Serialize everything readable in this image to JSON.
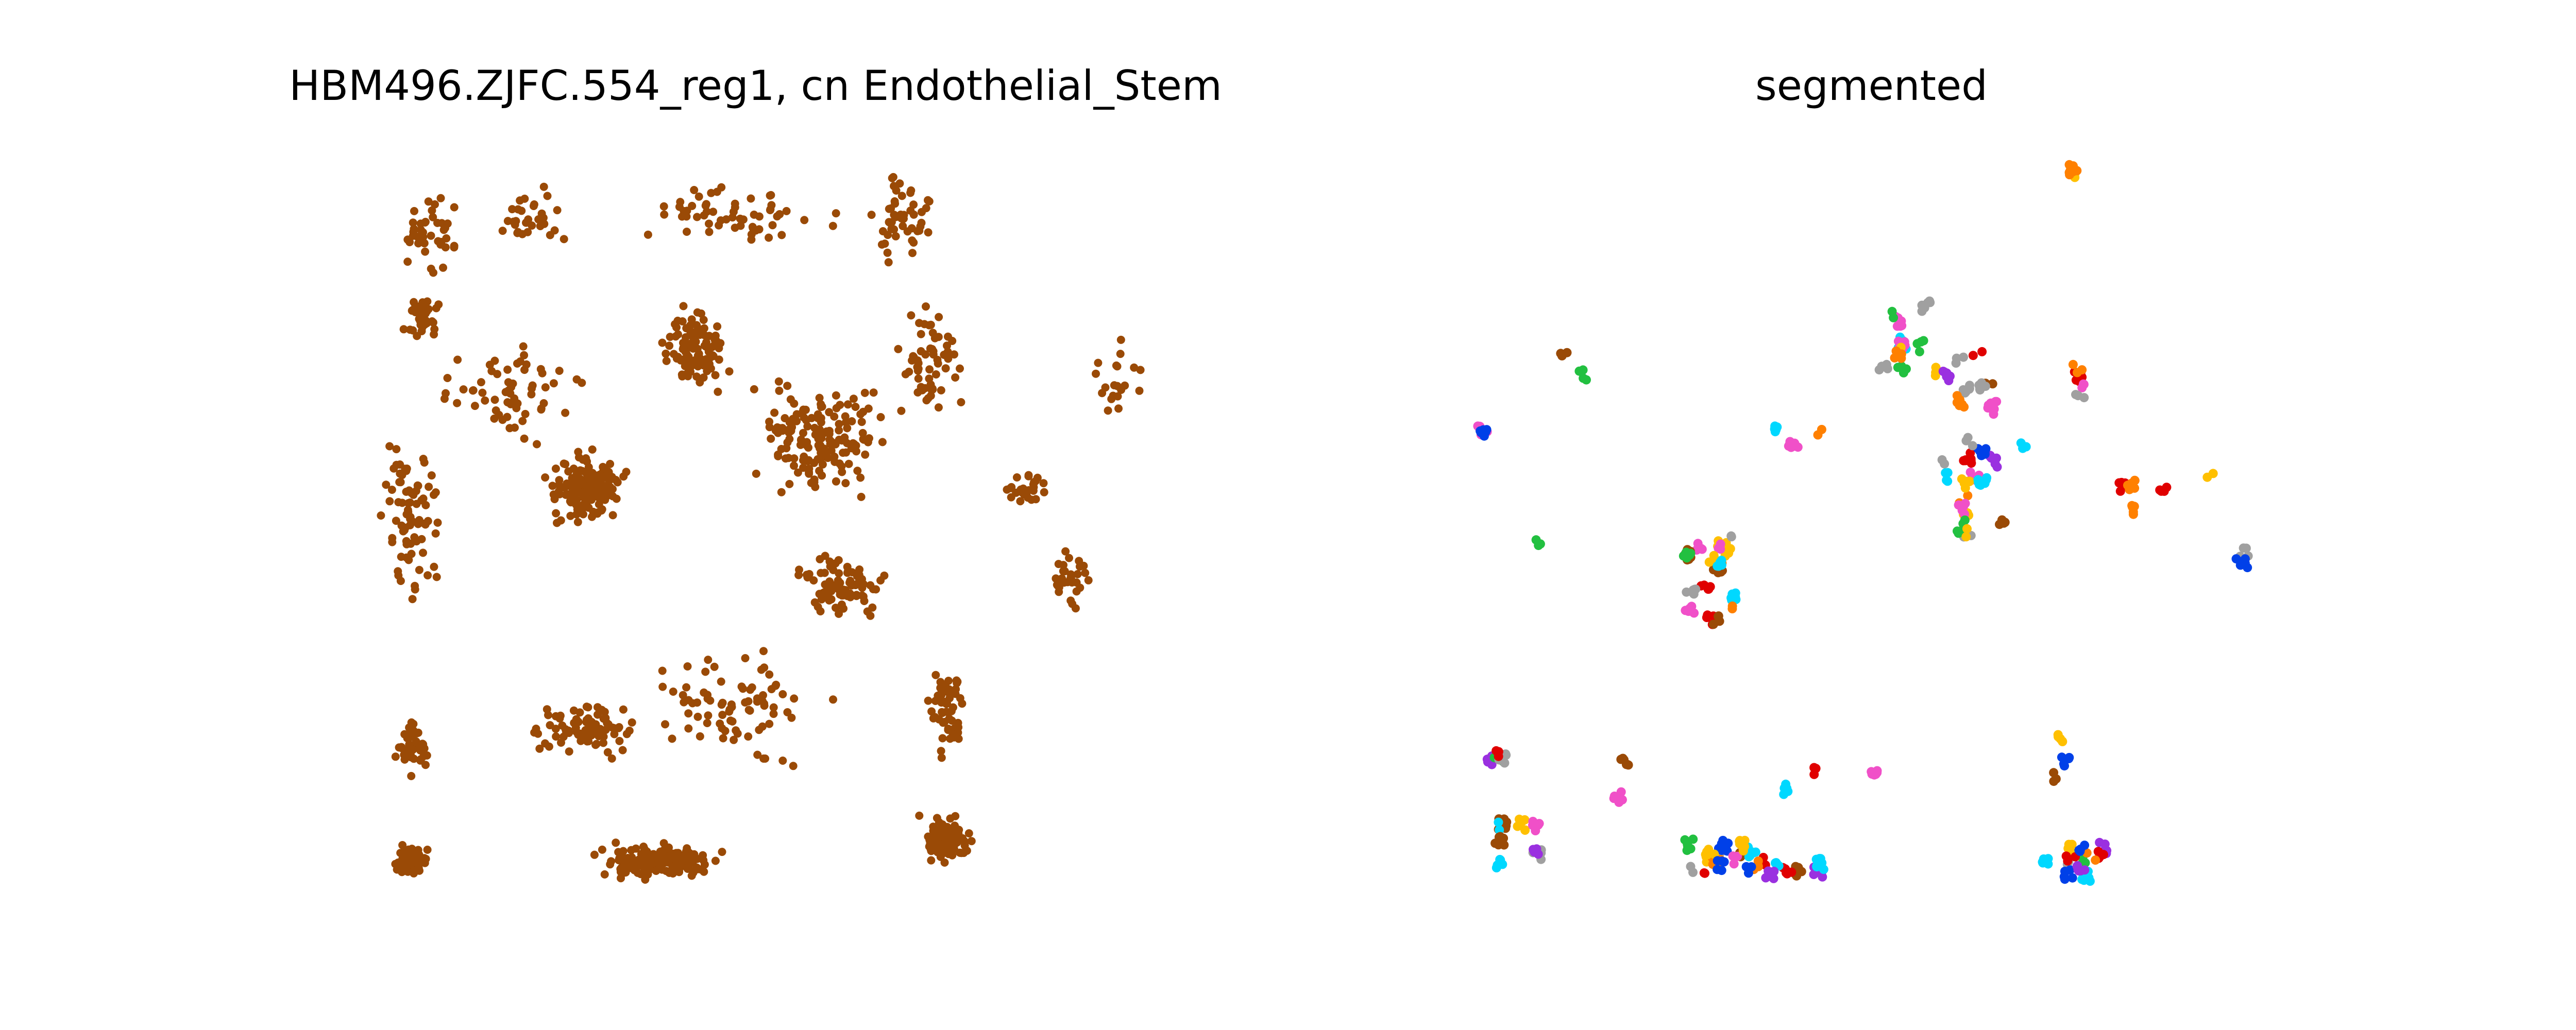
{
  "chart_data": [
    {
      "type": "scatter",
      "title": "HBM496.ZJFC.554_reg1, cn Endothelial_Stem",
      "axes_visible": false,
      "series": [
        {
          "color": "#9a4a06",
          "clusters": [
            {
              "cx": 0.06,
              "cy": 0.96,
              "rx": 0.03,
              "ry": 0.03,
              "n": 70
            },
            {
              "cx": 0.06,
              "cy": 0.8,
              "rx": 0.03,
              "ry": 0.05,
              "n": 40
            },
            {
              "cx": 0.06,
              "cy": 0.5,
              "rx": 0.05,
              "ry": 0.15,
              "n": 80
            },
            {
              "cx": 0.07,
              "cy": 0.22,
              "rx": 0.03,
              "ry": 0.04,
              "n": 40
            },
            {
              "cx": 0.08,
              "cy": 0.1,
              "rx": 0.05,
              "ry": 0.07,
              "n": 40
            },
            {
              "cx": 0.27,
              "cy": 0.78,
              "rx": 0.08,
              "ry": 0.05,
              "n": 80
            },
            {
              "cx": 0.36,
              "cy": 0.96,
              "rx": 0.1,
              "ry": 0.03,
              "n": 170
            },
            {
              "cx": 0.27,
              "cy": 0.45,
              "rx": 0.06,
              "ry": 0.06,
              "n": 150
            },
            {
              "cx": 0.18,
              "cy": 0.32,
              "rx": 0.1,
              "ry": 0.1,
              "n": 60
            },
            {
              "cx": 0.4,
              "cy": 0.26,
              "rx": 0.05,
              "ry": 0.07,
              "n": 100
            },
            {
              "cx": 0.55,
              "cy": 0.38,
              "rx": 0.1,
              "ry": 0.1,
              "n": 160
            },
            {
              "cx": 0.58,
              "cy": 0.58,
              "rx": 0.07,
              "ry": 0.06,
              "n": 80
            },
            {
              "cx": 0.45,
              "cy": 0.08,
              "rx": 0.15,
              "ry": 0.05,
              "n": 60
            },
            {
              "cx": 0.65,
              "cy": 0.08,
              "rx": 0.05,
              "ry": 0.08,
              "n": 50
            },
            {
              "cx": 0.68,
              "cy": 0.28,
              "rx": 0.05,
              "ry": 0.1,
              "n": 60
            },
            {
              "cx": 0.7,
              "cy": 0.93,
              "rx": 0.04,
              "ry": 0.04,
              "n": 110
            },
            {
              "cx": 0.7,
              "cy": 0.75,
              "rx": 0.03,
              "ry": 0.08,
              "n": 50
            },
            {
              "cx": 0.8,
              "cy": 0.45,
              "rx": 0.04,
              "ry": 0.03,
              "n": 30
            },
            {
              "cx": 0.85,
              "cy": 0.58,
              "rx": 0.04,
              "ry": 0.06,
              "n": 30
            },
            {
              "cx": 0.9,
              "cy": 0.3,
              "rx": 0.05,
              "ry": 0.08,
              "n": 20
            },
            {
              "cx": 0.45,
              "cy": 0.75,
              "rx": 0.12,
              "ry": 0.1,
              "n": 80
            },
            {
              "cx": 0.2,
              "cy": 0.08,
              "rx": 0.06,
              "ry": 0.05,
              "n": 30
            }
          ]
        }
      ]
    },
    {
      "type": "scatter",
      "title": "segmented",
      "axes_visible": false,
      "palette": [
        "#e00000",
        "#ff8000",
        "#ffc000",
        "#22c040",
        "#00d8ff",
        "#0040e8",
        "#9a30e0",
        "#f050c8",
        "#a0a0a0",
        "#9a4a06"
      ],
      "series": [
        {
          "clusters": [
            {
              "cx": 0.29,
              "cy": 0.57,
              "rx": 0.04,
              "ry": 0.06,
              "n": 110
            },
            {
              "cx": 0.35,
              "cy": 0.95,
              "rx": 0.08,
              "ry": 0.02,
              "n": 140
            },
            {
              "cx": 0.06,
              "cy": 0.93,
              "rx": 0.03,
              "ry": 0.03,
              "n": 50
            },
            {
              "cx": 0.05,
              "cy": 0.79,
              "rx": 0.02,
              "ry": 0.03,
              "n": 25
            },
            {
              "cx": 0.73,
              "cy": 0.95,
              "rx": 0.04,
              "ry": 0.03,
              "n": 70
            },
            {
              "cx": 0.72,
              "cy": 0.82,
              "rx": 0.03,
              "ry": 0.03,
              "n": 15
            },
            {
              "cx": 0.55,
              "cy": 0.25,
              "rx": 0.05,
              "ry": 0.05,
              "n": 80
            },
            {
              "cx": 0.62,
              "cy": 0.45,
              "rx": 0.05,
              "ry": 0.07,
              "n": 110
            },
            {
              "cx": 0.62,
              "cy": 0.3,
              "rx": 0.04,
              "ry": 0.05,
              "n": 40
            },
            {
              "cx": 0.82,
              "cy": 0.45,
              "rx": 0.03,
              "ry": 0.03,
              "n": 25
            },
            {
              "cx": 0.93,
              "cy": 0.55,
              "rx": 0.02,
              "ry": 0.03,
              "n": 20
            },
            {
              "cx": 0.75,
              "cy": 0.3,
              "rx": 0.03,
              "ry": 0.03,
              "n": 25
            },
            {
              "cx": 0.73,
              "cy": 0.02,
              "rx": 0.02,
              "ry": 0.02,
              "n": 12
            },
            {
              "cx": 0.16,
              "cy": 0.3,
              "rx": 0.05,
              "ry": 0.04,
              "n": 12
            },
            {
              "cx": 0.4,
              "cy": 0.38,
              "rx": 0.03,
              "ry": 0.03,
              "n": 15
            },
            {
              "cx": 0.2,
              "cy": 0.84,
              "rx": 0.05,
              "ry": 0.04,
              "n": 12
            },
            {
              "cx": 0.38,
              "cy": 0.85,
              "rx": 0.05,
              "ry": 0.03,
              "n": 10
            },
            {
              "cx": 0.06,
              "cy": 0.35,
              "rx": 0.04,
              "ry": 0.03,
              "n": 8
            },
            {
              "cx": 0.1,
              "cy": 0.52,
              "rx": 0.03,
              "ry": 0.05,
              "n": 6
            },
            {
              "cx": 0.02,
              "cy": 0.37,
              "rx": 0.01,
              "ry": 0.02,
              "n": 5
            },
            {
              "cx": 0.53,
              "cy": 0.82,
              "rx": 0.04,
              "ry": 0.03,
              "n": 8
            },
            {
              "cx": 0.87,
              "cy": 0.43,
              "rx": 0.03,
              "ry": 0.02,
              "n": 8
            }
          ]
        }
      ]
    }
  ]
}
